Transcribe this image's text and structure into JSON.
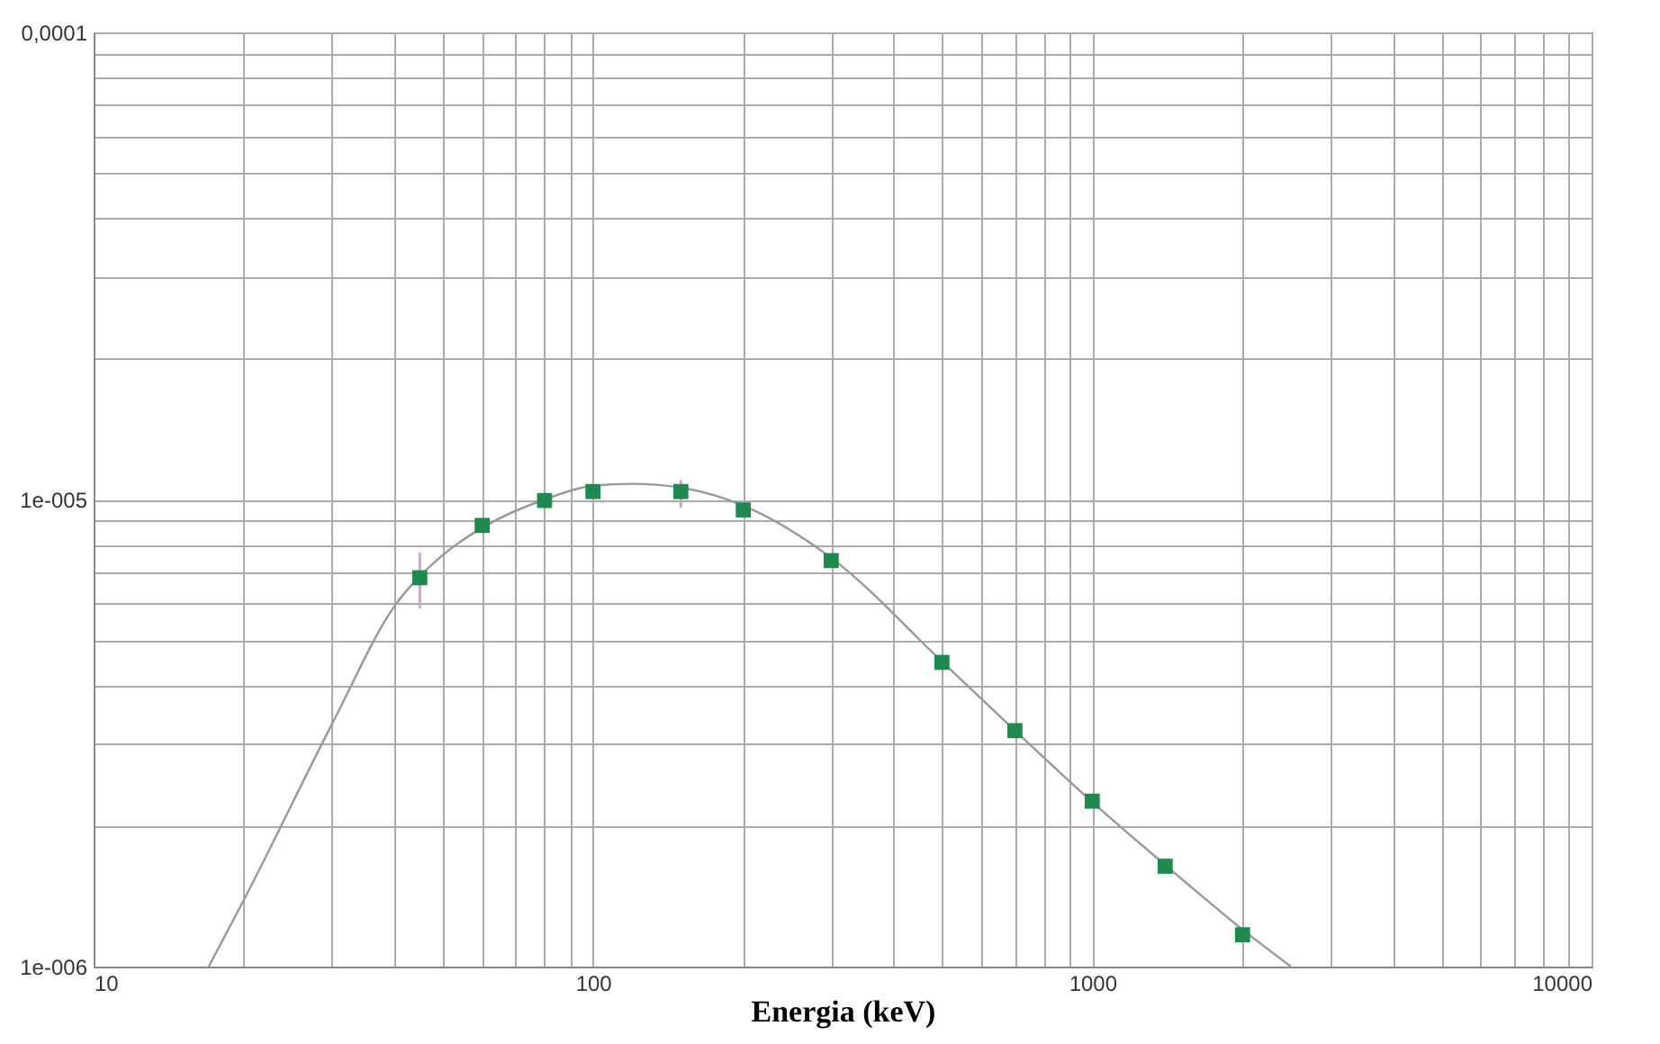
{
  "chart_data": {
    "type": "scatter",
    "xlabel": "Energia (keV)",
    "log": "xy",
    "grid": true,
    "marker": "square",
    "xlim": [
      10,
      10000
    ],
    "ylim": [
      1e-06,
      0.0001
    ],
    "xticks": [
      10,
      {
        "value": 20,
        "label": null
      },
      {
        "value": 30,
        "label": null
      },
      {
        "value": 40,
        "label": null
      },
      {
        "value": 50,
        "label": null
      },
      {
        "value": 60,
        "label": null
      },
      {
        "value": 70,
        "label": null
      },
      {
        "value": 80,
        "label": null
      },
      {
        "value": 90,
        "label": null
      },
      100,
      {
        "value": 200,
        "label": null
      },
      {
        "value": 300,
        "label": null
      },
      {
        "value": 400,
        "label": null
      },
      {
        "value": 500,
        "label": null
      },
      {
        "value": 600,
        "label": null
      },
      {
        "value": 700,
        "label": null
      },
      {
        "value": 800,
        "label": null
      },
      {
        "value": 900,
        "label": null
      },
      1000,
      {
        "value": 2000,
        "label": null
      },
      {
        "value": 3000,
        "label": null
      },
      {
        "value": 4000,
        "label": null
      },
      {
        "value": 5000,
        "label": null
      },
      {
        "value": 6000,
        "label": null
      },
      {
        "value": 7000,
        "label": null
      },
      {
        "value": 8000,
        "label": null
      },
      {
        "value": 9000,
        "label": null
      },
      10000
    ],
    "yticks": [
      {
        "value": 1e-06,
        "label": "1e-006"
      },
      {
        "value": 2e-06,
        "label": null
      },
      {
        "value": 3e-06,
        "label": null
      },
      {
        "value": 4e-06,
        "label": null
      },
      {
        "value": 5e-06,
        "label": null
      },
      {
        "value": 6e-06,
        "label": null
      },
      {
        "value": 7e-06,
        "label": null
      },
      {
        "value": 8e-06,
        "label": null
      },
      {
        "value": 9e-06,
        "label": null
      },
      {
        "value": 1e-05,
        "label": "1e-005"
      },
      {
        "value": 2e-05,
        "label": null
      },
      {
        "value": 3e-05,
        "label": null
      },
      {
        "value": 4e-05,
        "label": null
      },
      {
        "value": 5e-05,
        "label": null
      },
      {
        "value": 6e-05,
        "label": null
      },
      {
        "value": 7e-05,
        "label": null
      },
      {
        "value": 8e-05,
        "label": null
      },
      {
        "value": 9e-05,
        "label": null
      },
      {
        "value": 0.0001,
        "label": "0,0001"
      }
    ],
    "series": [
      {
        "type": "line",
        "marker": "none",
        "color": "#999999",
        "x": [
          17,
          20,
          30,
          40,
          50,
          60,
          80,
          100,
          120,
          150,
          200,
          300,
          500,
          700,
          1000,
          1500,
          2000,
          2500
        ],
        "values": [
          1e-06,
          1.39e-06,
          3.3e-06,
          5.9e-06,
          7.6e-06,
          8.7e-06,
          1e-05,
          1.07e-05,
          1.08e-05,
          1.06e-05,
          9.7e-06,
          7.5e-06,
          4.5e-06,
          3.2e-06,
          2.25e-06,
          1.55e-06,
          1.2e-06,
          1e-06
        ]
      },
      {
        "color": "#1e8a50",
        "x": [
          45,
          60,
          80,
          100,
          150,
          200,
          300,
          500,
          700,
          1000,
          1400,
          2000
        ],
        "values": [
          6.8e-06,
          8.8e-06,
          9.95e-06,
          1.04e-05,
          1.04e-05,
          9.5e-06,
          7.4e-06,
          4.48e-06,
          3.2e-06,
          2.26e-06,
          1.64e-06,
          1.17e-06
        ],
        "errors": [
          [
            5.85e-06,
            7.7e-06
          ],
          null,
          null,
          null,
          [
            9.6e-06,
            1.1e-05
          ],
          null,
          null,
          null,
          null,
          null,
          null,
          null
        ]
      }
    ]
  }
}
